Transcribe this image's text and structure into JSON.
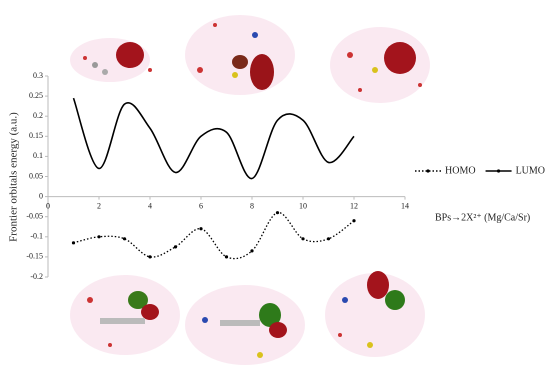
{
  "chart_data": {
    "type": "line",
    "y_label": "Frontier orbitals energy (a.u.)",
    "annotation": "BPs→2X²⁺ (Mg/Ca/Sr)",
    "x": [
      1,
      2,
      3,
      4,
      5,
      6,
      7,
      8,
      9,
      10,
      11,
      12
    ],
    "series": [
      {
        "name": "HOMO",
        "color": "#000000",
        "style": "dotted",
        "values": [
          -0.115,
          -0.1,
          -0.105,
          -0.15,
          -0.125,
          -0.08,
          -0.15,
          -0.135,
          -0.04,
          -0.105,
          -0.105,
          -0.06
        ]
      },
      {
        "name": "LUMO",
        "color": "#000000",
        "style": "solid",
        "values": [
          0.245,
          0.07,
          0.23,
          0.17,
          0.06,
          0.15,
          0.16,
          0.045,
          0.19,
          0.19,
          0.085,
          0.15
        ]
      }
    ],
    "xlim": [
      0,
      14
    ],
    "xticks": [
      0,
      2,
      4,
      6,
      8,
      10,
      12,
      14
    ],
    "ylim": [
      -0.2,
      0.3
    ],
    "yticks": [
      -0.2,
      -0.15,
      -0.1,
      -0.05,
      0,
      0.05,
      0.1,
      0.15,
      0.2,
      0.25,
      0.3
    ],
    "legend": "right",
    "grid": false
  }
}
